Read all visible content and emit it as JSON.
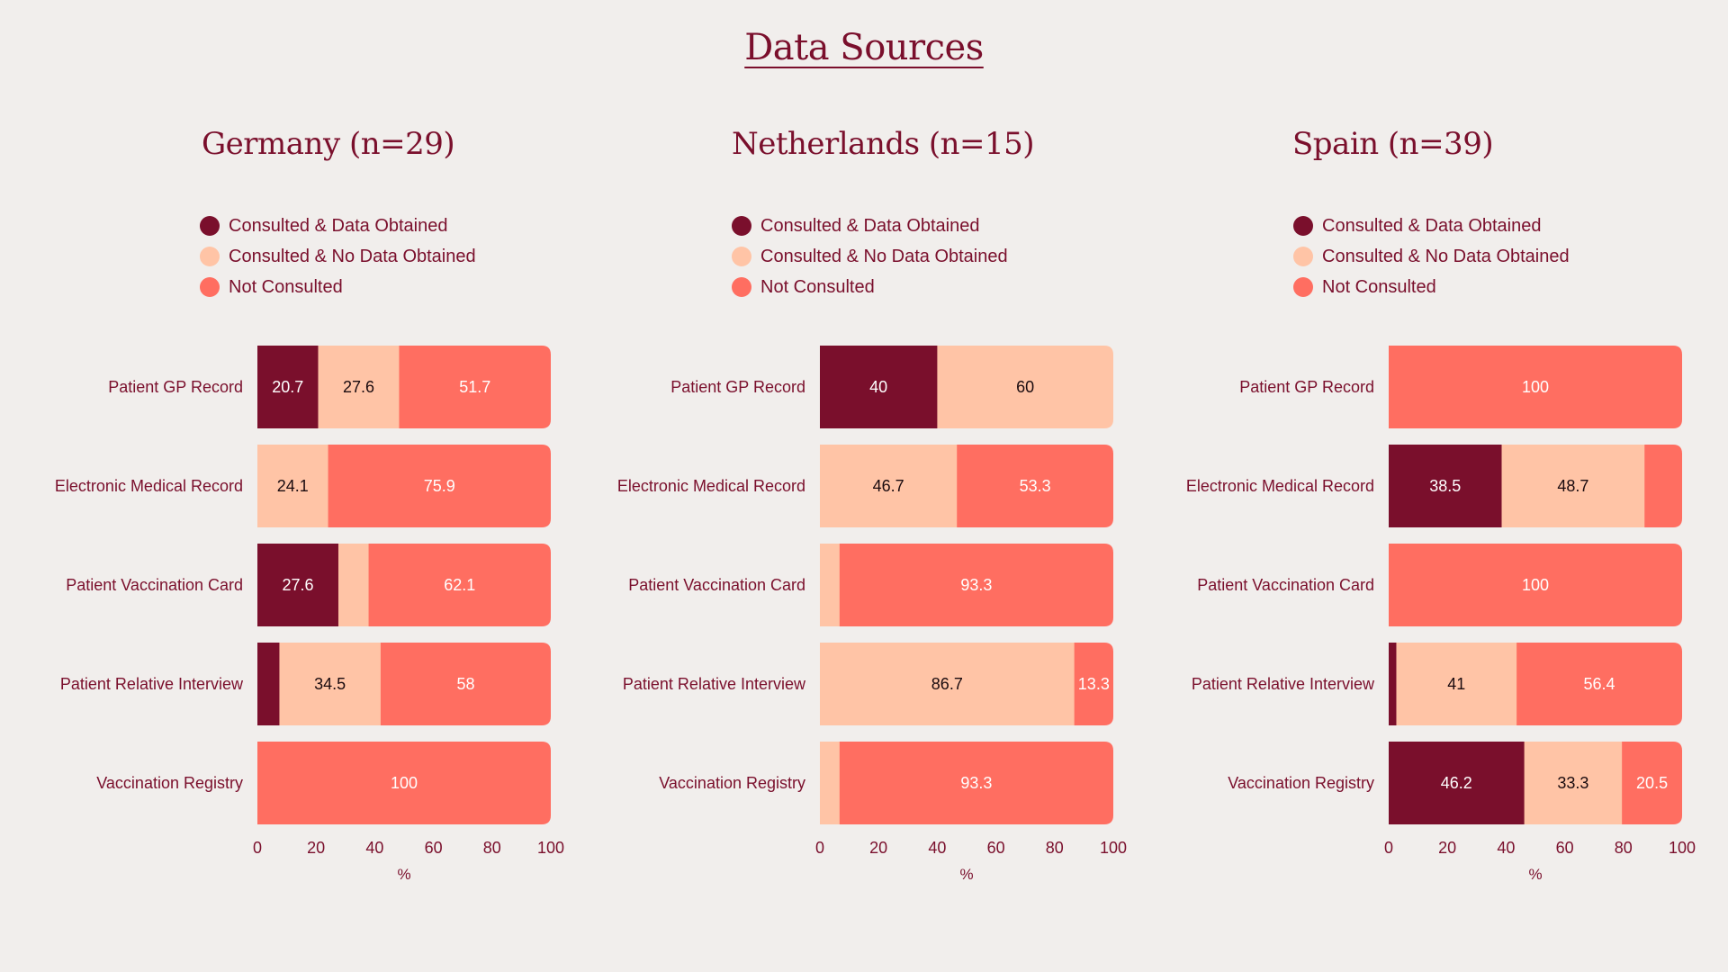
{
  "title": "Data Sources",
  "legend_items": [
    {
      "label": "Consulted & Data Obtained",
      "color": "#7a0f2c"
    },
    {
      "label": "Consulted & No Data Obtained",
      "color": "#ffc4a6"
    },
    {
      "label": "Not Consulted",
      "color": "#ff6e61"
    }
  ],
  "chart_data": [
    {
      "type": "bar",
      "orientation": "horizontal",
      "stacked": true,
      "title": "Germany (n=29)",
      "categories": [
        "Patient GP Record",
        "Electronic Medical Record",
        "Patient Vaccination Card",
        "Patient Relative Interview",
        "Vaccination Registry"
      ],
      "series": [
        {
          "name": "Consulted & Data Obtained",
          "color": "#7a0f2c",
          "values": [
            20.7,
            0,
            27.6,
            7.5,
            0
          ],
          "labels": [
            "20.7",
            "",
            "27.6",
            "",
            ""
          ]
        },
        {
          "name": "Consulted & No Data Obtained",
          "color": "#ffc4a6",
          "values": [
            27.6,
            24.1,
            10.3,
            34.5,
            0
          ],
          "labels": [
            "27.6",
            "24.1",
            "",
            "34.5",
            ""
          ]
        },
        {
          "name": "Not Consulted",
          "color": "#ff6e61",
          "values": [
            51.7,
            75.9,
            62.1,
            58,
            100
          ],
          "labels": [
            "51.7",
            "75.9",
            "62.1",
            "58",
            "100"
          ]
        }
      ],
      "xlabel": "%",
      "xlim": [
        0,
        100
      ],
      "xticks": [
        0,
        20,
        40,
        60,
        80,
        100
      ],
      "legend_position": "top-left"
    },
    {
      "type": "bar",
      "orientation": "horizontal",
      "stacked": true,
      "title": "Netherlands (n=15)",
      "categories": [
        "Patient GP Record",
        "Electronic Medical Record",
        "Patient Vaccination Card",
        "Patient Relative Interview",
        "Vaccination Registry"
      ],
      "series": [
        {
          "name": "Consulted & Data Obtained",
          "color": "#7a0f2c",
          "values": [
            40,
            0,
            0,
            0,
            0
          ],
          "labels": [
            "40",
            "",
            "",
            "",
            ""
          ]
        },
        {
          "name": "Consulted & No Data Obtained",
          "color": "#ffc4a6",
          "values": [
            60,
            46.7,
            6.7,
            86.7,
            6.7
          ],
          "labels": [
            "60",
            "46.7",
            "",
            "86.7",
            ""
          ]
        },
        {
          "name": "Not Consulted",
          "color": "#ff6e61",
          "values": [
            0,
            53.3,
            93.3,
            13.3,
            93.3
          ],
          "labels": [
            "",
            "53.3",
            "93.3",
            "13.3",
            "93.3"
          ]
        }
      ],
      "xlabel": "%",
      "xlim": [
        0,
        100
      ],
      "xticks": [
        0,
        20,
        40,
        60,
        80,
        100
      ],
      "legend_position": "top-left"
    },
    {
      "type": "bar",
      "orientation": "horizontal",
      "stacked": true,
      "title": "Spain (n=39)",
      "categories": [
        "Patient GP Record",
        "Electronic Medical Record",
        "Patient Vaccination Card",
        "Patient Relative Interview",
        "Vaccination Registry"
      ],
      "series": [
        {
          "name": "Consulted & Data Obtained",
          "color": "#7a0f2c",
          "values": [
            0,
            38.5,
            0,
            2.6,
            46.2
          ],
          "labels": [
            "",
            "38.5",
            "",
            "",
            "46.2"
          ]
        },
        {
          "name": "Consulted & No Data Obtained",
          "color": "#ffc4a6",
          "values": [
            0,
            48.7,
            0,
            41,
            33.3
          ],
          "labels": [
            "",
            "48.7",
            "",
            "41",
            "33.3"
          ]
        },
        {
          "name": "Not Consulted",
          "color": "#ff6e61",
          "values": [
            100,
            12.8,
            100,
            56.4,
            20.5
          ],
          "labels": [
            "100",
            "",
            "100",
            "56.4",
            "20.5"
          ]
        }
      ],
      "xlabel": "%",
      "xlim": [
        0,
        100
      ],
      "xticks": [
        0,
        20,
        40,
        60,
        80,
        100
      ],
      "legend_position": "top-left"
    }
  ]
}
